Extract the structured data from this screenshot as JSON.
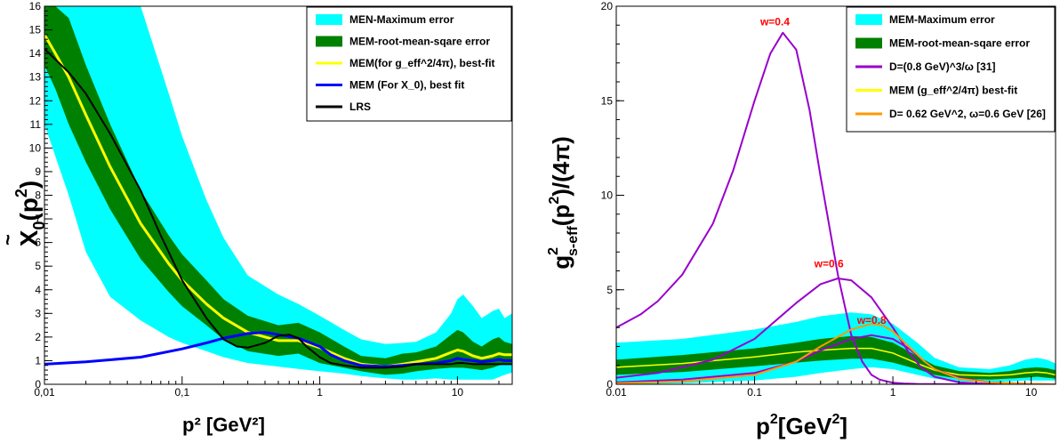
{
  "chart_data": [
    {
      "type": "line",
      "x_scale": "log",
      "xlim": [
        0.01,
        25
      ],
      "ylim": [
        0,
        16
      ],
      "xticks": [
        "0,01",
        "0,1",
        "1",
        "10"
      ],
      "yticks": [
        "0",
        "1",
        "2",
        "3",
        "4",
        "5",
        "6",
        "7",
        "8",
        "9",
        "10",
        "11",
        "12",
        "13",
        "14",
        "15",
        "16"
      ],
      "xlabel": {
        "main": "p² ",
        "unit": "[GeV²]"
      },
      "ylabel": {
        "main": "X",
        "sub": "0",
        "tail": "(p",
        "sup": "2",
        "end": ")"
      },
      "legend": [
        {
          "label": "MEN-Maximum error",
          "color": "#00ffff",
          "kind": "band"
        },
        {
          "label": "MEM-root-mean-sqare error",
          "color": "#008000",
          "kind": "band"
        },
        {
          "label": "MEM(for g_eff^2/4π), best-fit",
          "color": "#ffff00",
          "kind": "line"
        },
        {
          "label": "MEM (For X_0), best fit",
          "color": "#0000ff",
          "kind": "line"
        },
        {
          "label": "LRS",
          "color": "#000000",
          "kind": "line"
        }
      ],
      "bands": [
        {
          "name": "MEN-Maximum error",
          "color": "#00ffff",
          "x": [
            0.01,
            0.015,
            0.02,
            0.03,
            0.05,
            0.08,
            0.1,
            0.15,
            0.2,
            0.3,
            0.5,
            0.7,
            1,
            1.5,
            2,
            3,
            4,
            5,
            7,
            9,
            10,
            11,
            13,
            15,
            18,
            20,
            22,
            25
          ],
          "upper": [
            16,
            16,
            16,
            16,
            16,
            12.3,
            10.5,
            7.8,
            6.2,
            4.6,
            3.8,
            3.4,
            2.9,
            2.3,
            1.9,
            1.7,
            1.75,
            1.8,
            2.2,
            3.0,
            3.6,
            3.8,
            3.3,
            2.8,
            3.1,
            3.2,
            2.8,
            3.0
          ],
          "lower": [
            11,
            8,
            5.6,
            3.7,
            2.7,
            2.0,
            1.75,
            1.4,
            1.15,
            0.9,
            0.75,
            0.65,
            0.55,
            0.45,
            0.35,
            0.25,
            0.2,
            0.2,
            0.25,
            0.2,
            0.2,
            0.2,
            0.2,
            0.2,
            0.2,
            0.3,
            0.4,
            0.5
          ]
        },
        {
          "name": "MEM-root-mean-sqare error",
          "color": "#008000",
          "x": [
            0.01,
            0.012,
            0.015,
            0.02,
            0.03,
            0.05,
            0.08,
            0.1,
            0.15,
            0.2,
            0.3,
            0.5,
            0.7,
            1,
            1.5,
            2,
            3,
            4,
            5,
            7,
            9,
            10,
            11,
            13,
            15,
            18,
            20,
            22,
            25
          ],
          "upper": [
            16,
            16,
            15.5,
            13.5,
            11.0,
            8.2,
            6.3,
            5.5,
            4.4,
            3.6,
            2.9,
            2.5,
            2.6,
            2.2,
            1.6,
            1.2,
            1.1,
            1.3,
            1.35,
            1.6,
            2.1,
            2.3,
            2.2,
            1.8,
            1.6,
            1.9,
            2.0,
            1.8,
            1.7
          ],
          "lower": [
            13.5,
            12.5,
            11.0,
            9.4,
            7.4,
            5.3,
            3.9,
            3.3,
            2.5,
            1.9,
            1.4,
            1.2,
            1.3,
            0.9,
            0.7,
            0.55,
            0.4,
            0.45,
            0.55,
            0.65,
            0.7,
            0.7,
            0.7,
            0.65,
            0.6,
            0.7,
            0.8,
            0.85,
            0.9
          ]
        }
      ],
      "series": [
        {
          "name": "MEM(for g_eff^2/4π), best-fit",
          "color": "#ffff00",
          "width": 3,
          "x": [
            0.01,
            0.012,
            0.015,
            0.02,
            0.03,
            0.05,
            0.08,
            0.1,
            0.15,
            0.2,
            0.3,
            0.5,
            0.7,
            1,
            1.5,
            2,
            3,
            4,
            5,
            7,
            9,
            10,
            11,
            13,
            15,
            18,
            20,
            22,
            25
          ],
          "y": [
            14.8,
            14.0,
            13.0,
            11.4,
            9.2,
            6.8,
            5.1,
            4.4,
            3.4,
            2.8,
            2.2,
            1.85,
            1.85,
            1.55,
            1.1,
            0.85,
            0.75,
            0.85,
            0.95,
            1.1,
            1.35,
            1.45,
            1.4,
            1.2,
            1.1,
            1.2,
            1.3,
            1.25,
            1.25
          ]
        },
        {
          "name": "MEM (For X_0), best fit",
          "color": "#0000ff",
          "width": 3,
          "x": [
            0.01,
            0.02,
            0.05,
            0.1,
            0.15,
            0.2,
            0.3,
            0.4,
            0.5,
            0.7,
            1,
            1.2,
            1.5,
            2,
            3,
            4,
            5,
            7,
            9,
            10,
            11,
            13,
            15,
            18,
            20,
            22,
            25
          ],
          "y": [
            0.85,
            0.95,
            1.15,
            1.5,
            1.75,
            1.95,
            2.15,
            2.2,
            2.1,
            1.95,
            1.6,
            1.25,
            1.0,
            0.8,
            0.75,
            0.8,
            0.85,
            0.9,
            1.0,
            1.1,
            1.05,
            1.0,
            0.95,
            1.0,
            1.05,
            1.0,
            1.0
          ]
        },
        {
          "name": "LRS",
          "color": "#000000",
          "width": 2,
          "x": [
            0.01,
            0.015,
            0.02,
            0.03,
            0.05,
            0.07,
            0.1,
            0.15,
            0.2,
            0.25,
            0.3,
            0.4,
            0.5,
            0.6,
            0.7,
            0.8,
            1,
            1.2,
            1.5,
            2,
            3,
            4,
            5,
            7,
            9,
            10,
            11,
            13,
            15,
            18,
            20,
            22,
            25
          ],
          "y": [
            14.2,
            13.2,
            12.3,
            10.6,
            8.2,
            6.3,
            4.4,
            2.8,
            1.9,
            1.6,
            1.55,
            1.75,
            2.05,
            2.1,
            1.95,
            1.6,
            1.15,
            0.9,
            0.8,
            0.7,
            0.7,
            0.75,
            0.85,
            0.85,
            0.85,
            0.9,
            0.9,
            0.85,
            0.85,
            0.85,
            0.85,
            0.85,
            0.85
          ]
        }
      ]
    },
    {
      "type": "line",
      "x_scale": "log",
      "xlim": [
        0.01,
        15
      ],
      "ylim": [
        0,
        20
      ],
      "xticks": [
        "0.01",
        "0.1",
        "1",
        "10"
      ],
      "yticks": [
        "0",
        "5",
        "10",
        "15",
        "20"
      ],
      "xlabel": {
        "main": "p",
        "sup": "2",
        "unit": "[GeV",
        "unit_sup": "2",
        "end": "]"
      },
      "ylabel": {
        "main": "g",
        "sup": "2",
        "sub": "s-eff",
        "tail": "(p",
        "sup2": "2",
        "end": ")/(4π)"
      },
      "legend": [
        {
          "label": "MEM-Maximum error",
          "color": "#00ffff",
          "kind": "band"
        },
        {
          "label": "MEM-root-mean-sqare error",
          "color": "#008000",
          "kind": "band"
        },
        {
          "label": "D=(0.8 GeV)^3/ω [31]",
          "color": "#9900cc",
          "kind": "line"
        },
        {
          "label": "MEM (g_eff^2/4π) best-fit",
          "color": "#ffff00",
          "kind": "line"
        },
        {
          "label": "D= 0.62 GeV^2, ω=0.6 GeV [26]",
          "color": "#ff9900",
          "kind": "line"
        }
      ],
      "annotations": [
        {
          "text": "w=0.4",
          "x": 0.11,
          "y": 19.0,
          "color": "#ff0000"
        },
        {
          "text": "w=0.6",
          "x": 0.27,
          "y": 6.2,
          "color": "#ff0000"
        },
        {
          "text": "w=0.8",
          "x": 0.55,
          "y": 3.2,
          "color": "#ff0000"
        }
      ],
      "bands": [
        {
          "name": "MEM-Maximum error",
          "color": "#00ffff",
          "x": [
            0.01,
            0.03,
            0.1,
            0.2,
            0.3,
            0.5,
            0.7,
            1,
            1.5,
            2,
            3,
            5,
            7,
            9,
            11,
            13,
            15
          ],
          "upper": [
            2.2,
            2.4,
            2.9,
            3.3,
            3.6,
            3.8,
            3.7,
            3.2,
            2.2,
            1.4,
            0.9,
            0.8,
            1.0,
            1.3,
            1.4,
            1.3,
            1.1
          ],
          "lower": [
            0.0,
            0.05,
            0.2,
            0.4,
            0.6,
            0.8,
            0.9,
            0.8,
            0.5,
            0.3,
            0.15,
            0.1,
            0.15,
            0.2,
            0.2,
            0.2,
            0.2
          ]
        },
        {
          "name": "MEM-root-mean-sqare error",
          "color": "#008000",
          "x": [
            0.01,
            0.03,
            0.1,
            0.2,
            0.3,
            0.5,
            0.7,
            1,
            1.5,
            2,
            3,
            5,
            7,
            9,
            11,
            13,
            15
          ],
          "upper": [
            1.3,
            1.55,
            1.9,
            2.2,
            2.4,
            2.55,
            2.5,
            2.2,
            1.5,
            1.0,
            0.7,
            0.6,
            0.7,
            0.85,
            0.9,
            0.85,
            0.75
          ],
          "lower": [
            0.5,
            0.65,
            0.95,
            1.15,
            1.25,
            1.35,
            1.35,
            1.15,
            0.8,
            0.5,
            0.3,
            0.25,
            0.3,
            0.35,
            0.4,
            0.35,
            0.3
          ]
        }
      ],
      "series": [
        {
          "name": "MEM (g_eff^2/4π) best-fit",
          "color": "#ffff00",
          "width": 1.5,
          "x": [
            0.01,
            0.03,
            0.1,
            0.2,
            0.3,
            0.5,
            0.7,
            1,
            1.5,
            2,
            3,
            5,
            7,
            9,
            11,
            13,
            15
          ],
          "y": [
            0.9,
            1.1,
            1.45,
            1.7,
            1.8,
            1.9,
            1.9,
            1.65,
            1.1,
            0.75,
            0.5,
            0.45,
            0.5,
            0.6,
            0.65,
            0.6,
            0.5
          ]
        },
        {
          "name": "D=(0.8 GeV)^3/ω [31]",
          "label": "w=0.4",
          "color": "#9900cc",
          "width": 2,
          "x": [
            0.01,
            0.015,
            0.02,
            0.03,
            0.05,
            0.07,
            0.1,
            0.13,
            0.16,
            0.2,
            0.25,
            0.3,
            0.4,
            0.5,
            0.6,
            0.7,
            0.8,
            1,
            1.2,
            1.5,
            2,
            3,
            5,
            10,
            15
          ],
          "y": [
            3.0,
            3.7,
            4.4,
            5.8,
            8.5,
            11.3,
            15.0,
            17.5,
            18.6,
            17.7,
            14.5,
            11.0,
            5.8,
            2.6,
            1.2,
            0.5,
            0.25,
            0.08,
            0.04,
            0.02,
            0.01,
            0.0,
            0.0,
            0.0,
            0.0
          ]
        },
        {
          "name": "D=(0.8 GeV)^3/ω [31]",
          "label": "w=0.6",
          "color": "#9900cc",
          "width": 2,
          "x": [
            0.01,
            0.02,
            0.05,
            0.1,
            0.2,
            0.3,
            0.4,
            0.5,
            0.7,
            1,
            1.3,
            1.6,
            2,
            3,
            5,
            10,
            15
          ],
          "y": [
            0.35,
            0.6,
            1.3,
            2.4,
            4.3,
            5.3,
            5.6,
            5.5,
            4.6,
            3.0,
            1.7,
            0.9,
            0.4,
            0.1,
            0.02,
            0.0,
            0.0
          ]
        },
        {
          "name": "D=(0.8 GeV)^3/ω [31]",
          "label": "w=0.8",
          "color": "#9900cc",
          "width": 2,
          "x": [
            0.01,
            0.03,
            0.1,
            0.2,
            0.3,
            0.5,
            0.7,
            1,
            1.3,
            1.7,
            2,
            3,
            5,
            10,
            15
          ],
          "y": [
            0.1,
            0.25,
            0.6,
            1.2,
            1.8,
            2.4,
            2.6,
            2.4,
            1.9,
            1.2,
            0.8,
            0.35,
            0.1,
            0.02,
            0.0
          ]
        },
        {
          "name": "D= 0.62 GeV^2, ω=0.6 GeV [26]",
          "color": "#ff9900",
          "width": 2,
          "x": [
            0.01,
            0.03,
            0.1,
            0.2,
            0.3,
            0.5,
            0.7,
            0.85,
            1,
            1.3,
            1.7,
            2,
            3,
            5,
            10,
            15
          ],
          "y": [
            0.05,
            0.15,
            0.5,
            1.2,
            2.0,
            2.9,
            3.2,
            3.1,
            2.8,
            2.0,
            1.2,
            0.8,
            0.3,
            0.1,
            0.02,
            0.0
          ]
        }
      ]
    }
  ]
}
